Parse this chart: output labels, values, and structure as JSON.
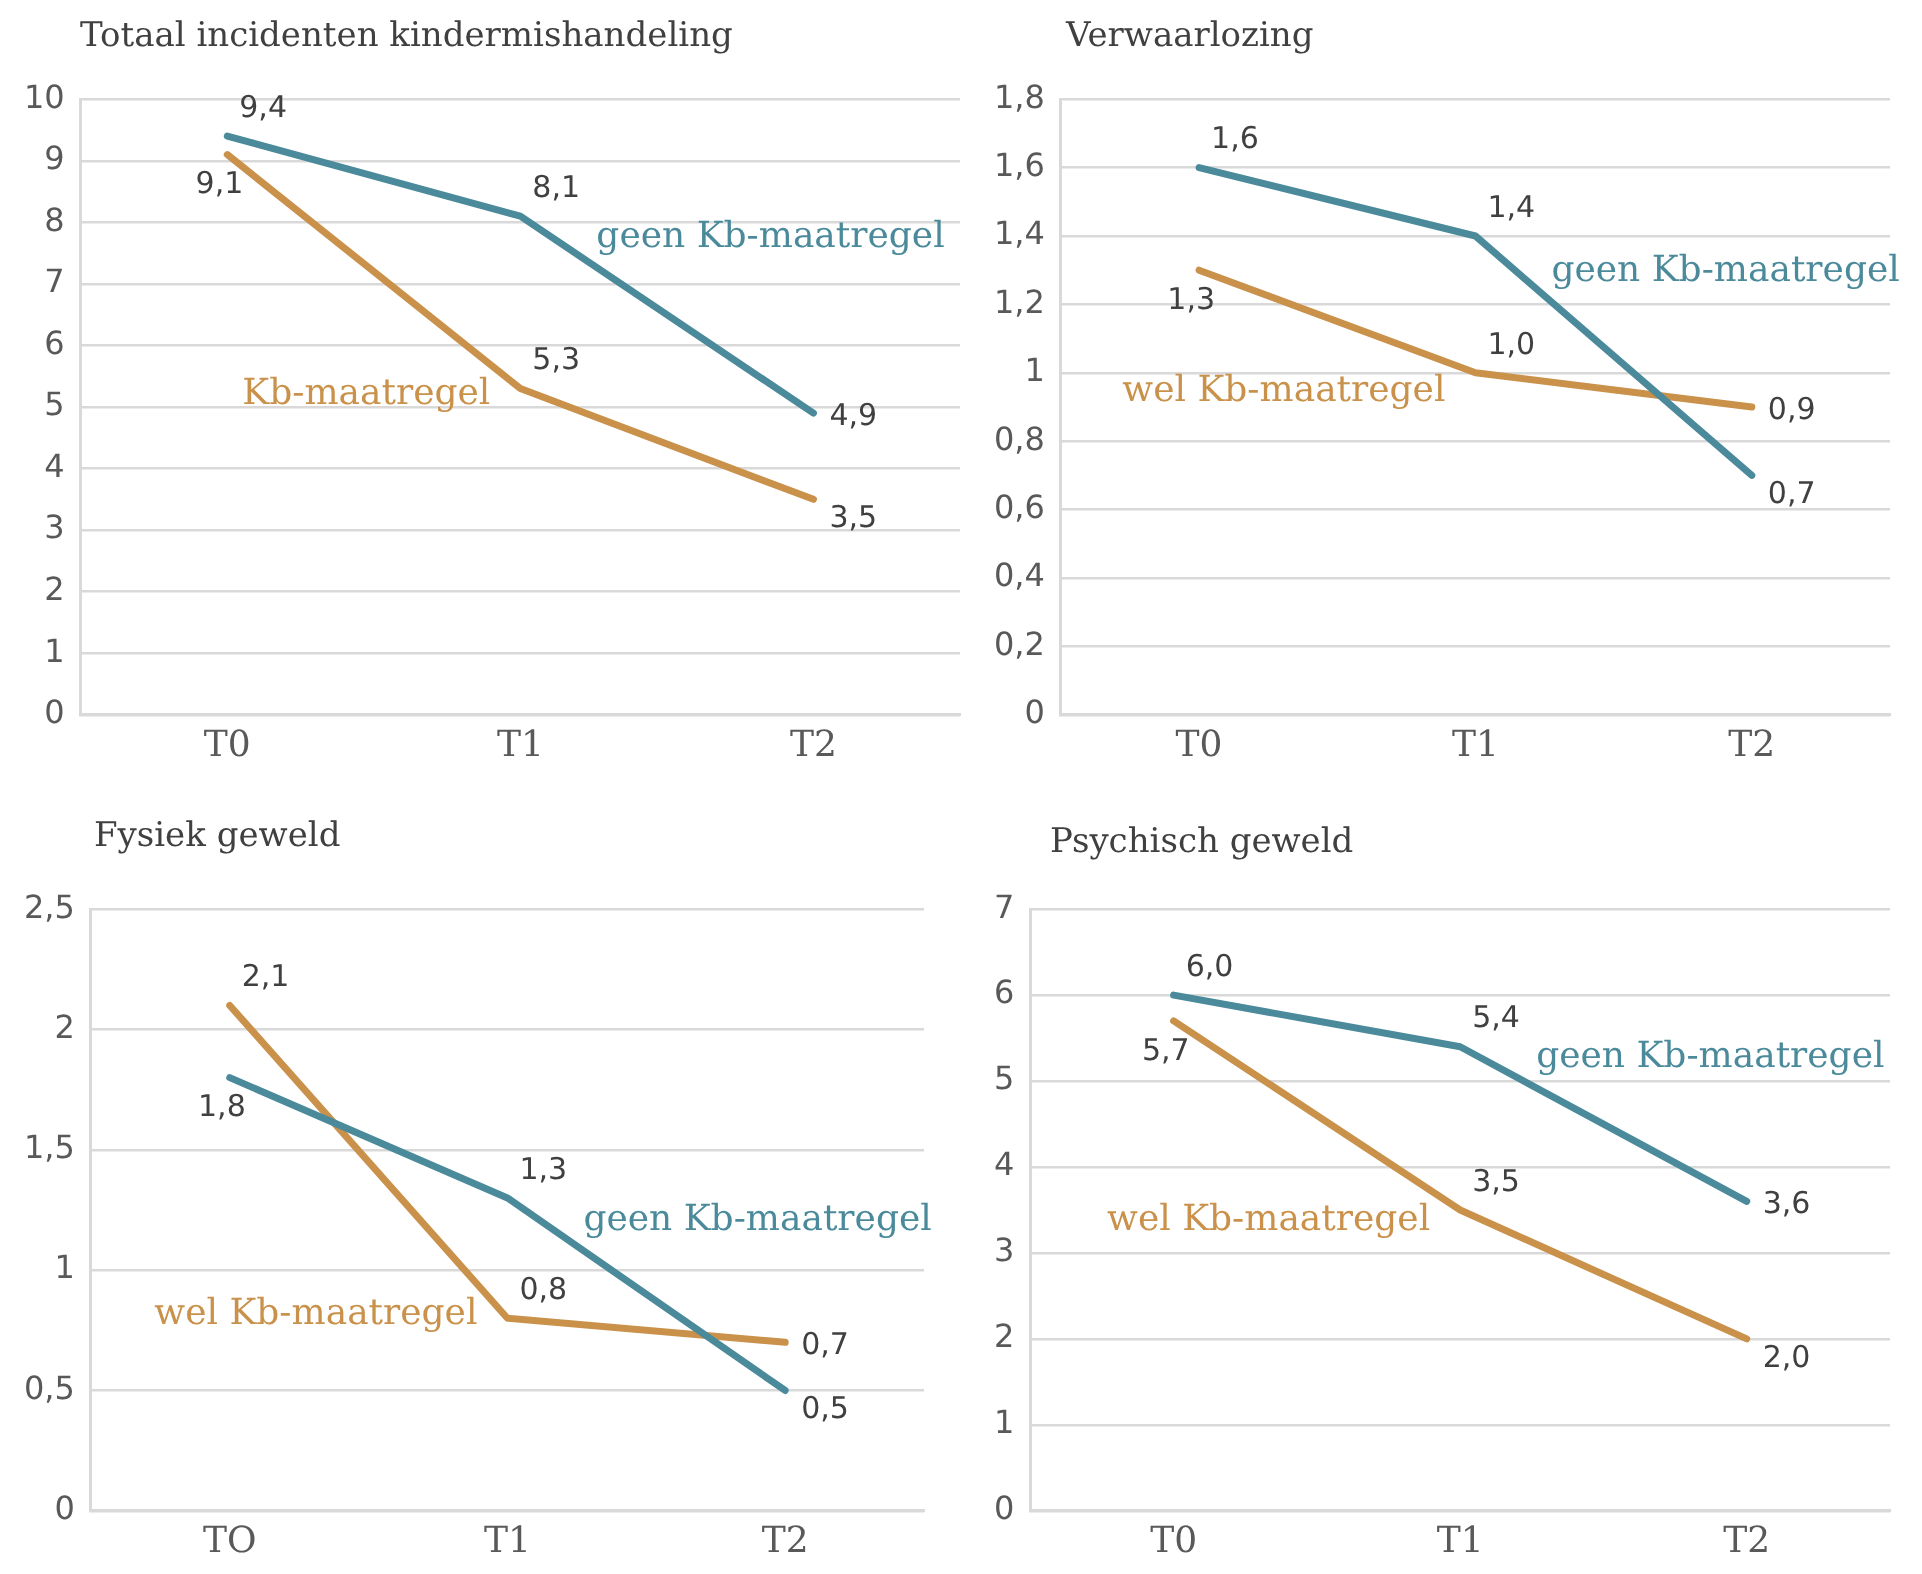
{
  "chart_data": [
    {
      "type": "line",
      "title": "Totaal incidenten kindermishandeling",
      "categories": [
        "T0",
        "T1",
        "T2"
      ],
      "series": [
        {
          "name": "geen Kb-maatregel",
          "color": "#4b8a9b",
          "values": [
            9.4,
            8.1,
            4.9
          ],
          "value_labels": [
            "9,4",
            "8,1",
            "4,9"
          ]
        },
        {
          "name": "Kb-maatregel",
          "color": "#c9914a",
          "values": [
            9.1,
            5.3,
            3.5
          ],
          "value_labels": [
            "9,1",
            "5,3",
            "3,5"
          ]
        }
      ],
      "ylim": [
        0,
        10
      ],
      "yticks": [
        0,
        1,
        2,
        3,
        4,
        5,
        6,
        7,
        8,
        9,
        10
      ],
      "grid": "y",
      "legend": false,
      "marker": "none",
      "line_style": "solid"
    },
    {
      "type": "line",
      "title": "Verwaarlozing",
      "categories": [
        "T0",
        "T1",
        "T2"
      ],
      "series": [
        {
          "name": "geen Kb-maatregel",
          "color": "#4b8a9b",
          "values": [
            1.6,
            1.4,
            0.7
          ],
          "value_labels": [
            "1,6",
            "1,4",
            "0,7"
          ]
        },
        {
          "name": "wel Kb-maatregel",
          "color": "#c9914a",
          "values": [
            1.3,
            1.0,
            0.9
          ],
          "value_labels": [
            "1,3",
            "1,0",
            "0,9"
          ]
        }
      ],
      "ylim": [
        0,
        1.8
      ],
      "yticks": [
        0,
        {
          "value": 0.2,
          "label": "0,2"
        },
        {
          "value": 0.4,
          "label": "0,4"
        },
        {
          "value": 0.6,
          "label": "0,6"
        },
        {
          "value": 0.8,
          "label": "0,8"
        },
        1,
        {
          "value": 1.2,
          "label": "1,2"
        },
        {
          "value": 1.4,
          "label": "1,4"
        },
        {
          "value": 1.6,
          "label": "1,6"
        },
        {
          "value": 1.8,
          "label": "1,8"
        }
      ],
      "grid": "y",
      "legend": false,
      "marker": "none",
      "line_style": "solid"
    },
    {
      "type": "line",
      "title": "Fysiek geweld",
      "categories": [
        "TO",
        "T1",
        "T2"
      ],
      "series": [
        {
          "name": "geen Kb-maatregel",
          "color": "#4b8a9b",
          "values": [
            1.8,
            1.3,
            0.5
          ],
          "value_labels": [
            "1,8",
            "1,3",
            "0,5"
          ]
        },
        {
          "name": "wel Kb-maatregel",
          "color": "#c9914a",
          "values": [
            2.1,
            0.8,
            0.7
          ],
          "value_labels": [
            "2,1",
            "0,8",
            "0,7"
          ]
        }
      ],
      "ylim": [
        0,
        2.5
      ],
      "yticks": [
        0,
        {
          "value": 0.5,
          "label": "0,5"
        },
        1,
        {
          "value": 1.5,
          "label": "1,5"
        },
        2,
        {
          "value": 2.5,
          "label": "2,5"
        }
      ],
      "grid": "y",
      "legend": false,
      "marker": "none",
      "line_style": "solid"
    },
    {
      "type": "line",
      "title": "Psychisch geweld",
      "categories": [
        "T0",
        "T1",
        "T2"
      ],
      "series": [
        {
          "name": "geen Kb-maatregel",
          "color": "#4b8a9b",
          "values": [
            6.0,
            5.4,
            3.6
          ],
          "value_labels": [
            "6,0",
            "5,4",
            "3,6"
          ]
        },
        {
          "name": "wel Kb-maatregel",
          "color": "#c9914a",
          "values": [
            5.7,
            3.5,
            2.0
          ],
          "value_labels": [
            "5,7",
            "3,5",
            "2,0"
          ]
        }
      ],
      "ylim": [
        0,
        7
      ],
      "yticks": [
        0,
        1,
        2,
        3,
        4,
        5,
        6,
        7
      ],
      "grid": "y",
      "legend": false,
      "marker": "none",
      "line_style": "solid"
    }
  ]
}
